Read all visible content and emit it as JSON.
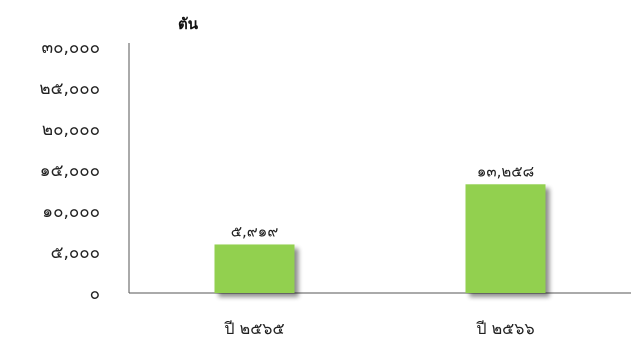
{
  "chart_data": {
    "type": "bar",
    "title": "",
    "ylabel": "ตัน",
    "xlabel": "",
    "categories": [
      "ปี ๒๕๖๕",
      "ปี ๒๕๖๖"
    ],
    "values": [
      5919,
      13258
    ],
    "data_labels": [
      "๕,๙๑๙",
      "๑๓,๒๕๘"
    ],
    "ylim": [
      0,
      30000
    ],
    "y_ticks": [
      0,
      5000,
      10000,
      15000,
      20000,
      25000,
      30000
    ],
    "y_tick_labels": [
      "๐",
      "๕,๐๐๐",
      "๑๐,๐๐๐",
      "๑๕,๐๐๐",
      "๒๐,๐๐๐",
      "๒๕,๐๐๐",
      "๓๐,๐๐๐"
    ],
    "grid": false,
    "legend": "none",
    "bar_color": "#92d050",
    "bar_shadow": true
  }
}
